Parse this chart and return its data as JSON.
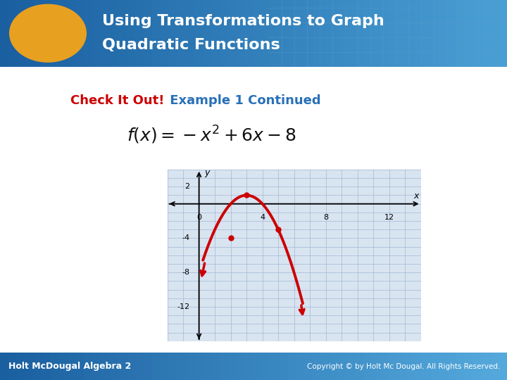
{
  "bg_color": "#ffffff",
  "header_bg_left": "#2970b8",
  "header_bg_right": "#3a8fcc",
  "header_text_line1": "Using Transformations to Graph",
  "header_text_line2": "Quadratic Functions",
  "header_text_color": "#ffffff",
  "check_it_out_color": "#cc0000",
  "check_it_out_text": "Check It Out!",
  "example_text": " Example 1 Continued",
  "example_text_color": "#2870b8",
  "oval_color": "#e8a020",
  "graph_bg": "#d8e4f0",
  "grid_color": "#a8bcd8",
  "curve_color": "#cc0000",
  "dot_color": "#cc0000",
  "x_min": -2,
  "x_max": 14,
  "y_min": -16,
  "y_max": 4,
  "x_ticks": [
    0,
    4,
    8,
    12
  ],
  "y_ticks": [
    2,
    -4,
    -8,
    -12
  ],
  "dot_points_x": [
    2,
    5
  ],
  "dot_points_y": [
    -4,
    -3
  ],
  "vertex_x": 3,
  "vertex_y": 1,
  "footer_bg": "#2970b8",
  "footer_text": "Holt McDougal Algebra 2",
  "footer_text_color": "#ffffff",
  "copyright_text": "Copyright © by Holt Mc Dougal. All Rights Reserved.",
  "copyright_bold": "All Rights Reserved.",
  "copyright_color": "#ffffff"
}
